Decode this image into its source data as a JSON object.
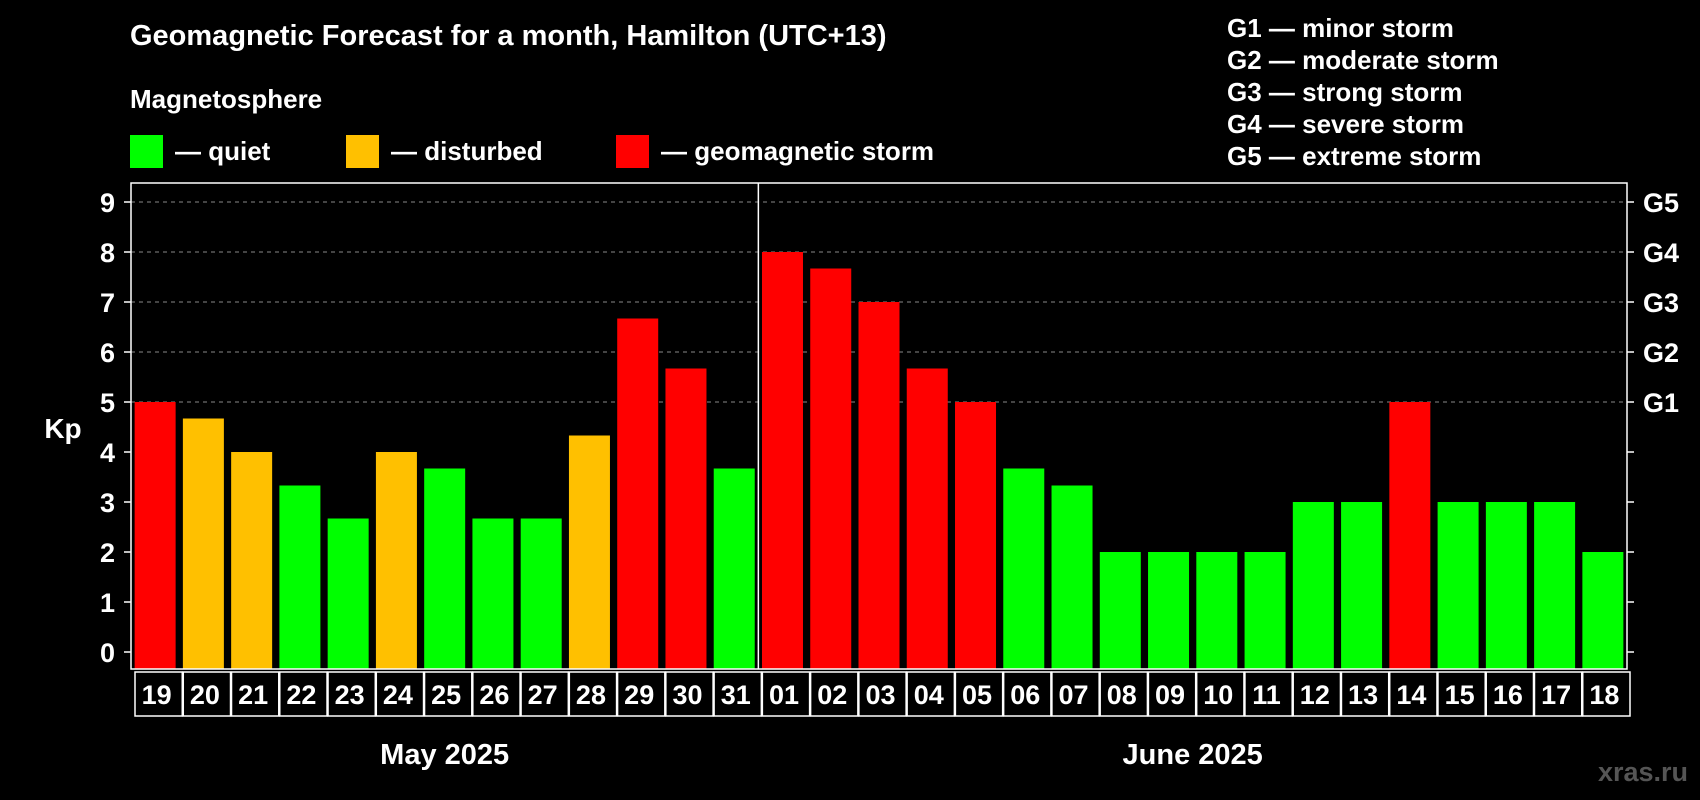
{
  "colors": {
    "quiet": "#00ff00",
    "disturbed": "#ffc000",
    "storm": "#ff0000",
    "background": "#000000",
    "grid": "#888888",
    "watermark": "#555555"
  },
  "legend": {
    "heading": "Magnetosphere",
    "items": [
      {
        "key": "quiet",
        "label": "— quiet",
        "color": "#00ff00"
      },
      {
        "key": "disturbed",
        "label": "— disturbed",
        "color": "#ffc000"
      },
      {
        "key": "storm",
        "label": "— geomagnetic storm",
        "color": "#ff0000"
      }
    ]
  },
  "storm_scale": [
    "G1 — minor storm",
    "G2 — moderate storm",
    "G3 — strong storm",
    "G4 — severe storm",
    "G5 — extreme storm"
  ],
  "watermark": "xras.ru",
  "chart_data": {
    "type": "bar",
    "title": "Geomagnetic Forecast for a month, Hamilton (UTC+13)",
    "ylabel": "Kp",
    "ylim": [
      0,
      9
    ],
    "yticks": [
      "0",
      "1",
      "2",
      "3",
      "4",
      "5",
      "6",
      "7",
      "8",
      "9"
    ],
    "right_axis": [
      {
        "value": 5,
        "label": "G1"
      },
      {
        "value": 6,
        "label": "G2"
      },
      {
        "value": 7,
        "label": "G3"
      },
      {
        "value": 8,
        "label": "G4"
      },
      {
        "value": 9,
        "label": "G5"
      }
    ],
    "grid": true,
    "months": [
      {
        "label": "May 2025",
        "start_index": 0,
        "count": 13
      },
      {
        "label": "June 2025",
        "start_index": 13,
        "count": 18
      }
    ],
    "categories": [
      "19",
      "20",
      "21",
      "22",
      "23",
      "24",
      "25",
      "26",
      "27",
      "28",
      "29",
      "30",
      "31",
      "01",
      "02",
      "03",
      "04",
      "05",
      "06",
      "07",
      "08",
      "09",
      "10",
      "11",
      "12",
      "13",
      "14",
      "15",
      "16",
      "17",
      "18"
    ],
    "values": [
      5.0,
      4.67,
      4.0,
      3.33,
      2.67,
      4.0,
      3.67,
      2.67,
      2.67,
      4.33,
      6.67,
      5.67,
      3.67,
      8.0,
      7.67,
      7.0,
      5.67,
      5.0,
      3.67,
      3.33,
      2.0,
      2.0,
      2.0,
      2.0,
      3.0,
      3.0,
      5.0,
      3.0,
      3.0,
      3.0,
      2.0
    ],
    "levels": [
      "storm",
      "disturbed",
      "disturbed",
      "quiet",
      "quiet",
      "disturbed",
      "quiet",
      "quiet",
      "quiet",
      "disturbed",
      "storm",
      "storm",
      "quiet",
      "storm",
      "storm",
      "storm",
      "storm",
      "storm",
      "quiet",
      "quiet",
      "quiet",
      "quiet",
      "quiet",
      "quiet",
      "quiet",
      "quiet",
      "storm",
      "quiet",
      "quiet",
      "quiet",
      "quiet"
    ]
  }
}
